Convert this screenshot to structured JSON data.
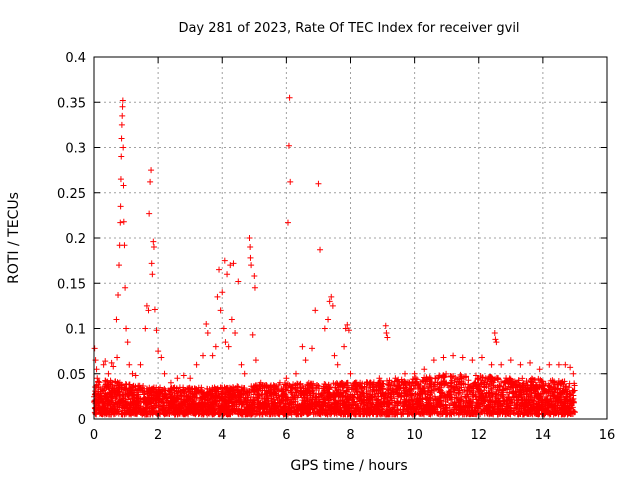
{
  "chart_data": {
    "type": "scatter",
    "title": "Day 281 of 2023, Rate Of TEC Index for receiver gvil",
    "xlabel": "GPS time / hours",
    "ylabel": "ROTI / TECUs",
    "xlim": [
      0,
      16
    ],
    "ylim": [
      0,
      0.4
    ],
    "x_ticks": [
      0,
      2,
      4,
      6,
      8,
      10,
      12,
      14,
      16
    ],
    "x_tick_labels": [
      "0",
      "2",
      "4",
      "6",
      "8",
      "10",
      "12",
      "14",
      "16"
    ],
    "y_ticks": [
      0,
      0.05,
      0.1,
      0.15,
      0.2,
      0.25,
      0.3,
      0.35,
      0.4
    ],
    "y_tick_labels": [
      "0",
      "0.05",
      "0.1",
      "0.15",
      "0.2",
      "0.25",
      "0.3",
      "0.35",
      "0.4"
    ],
    "grid": true,
    "marker": "+",
    "series": [
      {
        "name": "ROTI",
        "color": "#ff0000",
        "points": [
          [
            0.02,
            0.078
          ],
          [
            0.05,
            0.065
          ],
          [
            0.08,
            0.055
          ],
          [
            0.1,
            0.045
          ],
          [
            0.15,
            0.035
          ],
          [
            0.2,
            0.03
          ],
          [
            0.25,
            0.028
          ],
          [
            0.3,
            0.06
          ],
          [
            0.35,
            0.064
          ],
          [
            0.45,
            0.05
          ],
          [
            0.55,
            0.062
          ],
          [
            0.6,
            0.058
          ],
          [
            0.7,
            0.11
          ],
          [
            0.72,
            0.068
          ],
          [
            0.75,
            0.137
          ],
          [
            0.78,
            0.17
          ],
          [
            0.8,
            0.192
          ],
          [
            0.82,
            0.217
          ],
          [
            0.83,
            0.235
          ],
          [
            0.84,
            0.265
          ],
          [
            0.85,
            0.29
          ],
          [
            0.86,
            0.31
          ],
          [
            0.87,
            0.325
          ],
          [
            0.88,
            0.335
          ],
          [
            0.89,
            0.345
          ],
          [
            0.9,
            0.352
          ],
          [
            0.91,
            0.3
          ],
          [
            0.92,
            0.258
          ],
          [
            0.93,
            0.218
          ],
          [
            0.95,
            0.192
          ],
          [
            0.97,
            0.145
          ],
          [
            1.0,
            0.1
          ],
          [
            1.05,
            0.085
          ],
          [
            1.1,
            0.06
          ],
          [
            1.2,
            0.05
          ],
          [
            1.3,
            0.048
          ],
          [
            1.45,
            0.06
          ],
          [
            1.6,
            0.1
          ],
          [
            1.65,
            0.125
          ],
          [
            1.7,
            0.12
          ],
          [
            1.72,
            0.227
          ],
          [
            1.75,
            0.262
          ],
          [
            1.78,
            0.275
          ],
          [
            1.8,
            0.172
          ],
          [
            1.82,
            0.16
          ],
          [
            1.85,
            0.196
          ],
          [
            1.87,
            0.19
          ],
          [
            1.9,
            0.121
          ],
          [
            1.95,
            0.098
          ],
          [
            2.0,
            0.075
          ],
          [
            2.1,
            0.068
          ],
          [
            2.2,
            0.05
          ],
          [
            2.4,
            0.04
          ],
          [
            2.6,
            0.045
          ],
          [
            2.8,
            0.048
          ],
          [
            3.0,
            0.045
          ],
          [
            3.2,
            0.06
          ],
          [
            3.4,
            0.07
          ],
          [
            3.5,
            0.105
          ],
          [
            3.55,
            0.095
          ],
          [
            3.7,
            0.07
          ],
          [
            3.8,
            0.08
          ],
          [
            3.85,
            0.135
          ],
          [
            3.9,
            0.165
          ],
          [
            3.95,
            0.12
          ],
          [
            4.0,
            0.14
          ],
          [
            4.05,
            0.1
          ],
          [
            4.08,
            0.175
          ],
          [
            4.1,
            0.085
          ],
          [
            4.15,
            0.16
          ],
          [
            4.2,
            0.08
          ],
          [
            4.25,
            0.17
          ],
          [
            4.3,
            0.11
          ],
          [
            4.35,
            0.172
          ],
          [
            4.4,
            0.095
          ],
          [
            4.5,
            0.152
          ],
          [
            4.6,
            0.06
          ],
          [
            4.7,
            0.05
          ],
          [
            4.85,
            0.2
          ],
          [
            4.87,
            0.19
          ],
          [
            4.88,
            0.178
          ],
          [
            4.9,
            0.17
          ],
          [
            4.95,
            0.093
          ],
          [
            5.0,
            0.158
          ],
          [
            5.02,
            0.145
          ],
          [
            5.05,
            0.065
          ],
          [
            5.2,
            0.04
          ],
          [
            5.5,
            0.035
          ],
          [
            5.8,
            0.04
          ],
          [
            6.0,
            0.045
          ],
          [
            6.05,
            0.217
          ],
          [
            6.08,
            0.302
          ],
          [
            6.1,
            0.355
          ],
          [
            6.12,
            0.262
          ],
          [
            6.3,
            0.05
          ],
          [
            6.5,
            0.08
          ],
          [
            6.6,
            0.065
          ],
          [
            6.8,
            0.078
          ],
          [
            6.9,
            0.12
          ],
          [
            7.0,
            0.26
          ],
          [
            7.05,
            0.187
          ],
          [
            7.2,
            0.1
          ],
          [
            7.3,
            0.11
          ],
          [
            7.35,
            0.13
          ],
          [
            7.4,
            0.135
          ],
          [
            7.45,
            0.125
          ],
          [
            7.5,
            0.07
          ],
          [
            7.6,
            0.06
          ],
          [
            7.8,
            0.08
          ],
          [
            7.85,
            0.1
          ],
          [
            7.9,
            0.104
          ],
          [
            7.95,
            0.098
          ],
          [
            8.0,
            0.05
          ],
          [
            8.3,
            0.04
          ],
          [
            8.6,
            0.04
          ],
          [
            8.9,
            0.045
          ],
          [
            9.1,
            0.103
          ],
          [
            9.12,
            0.095
          ],
          [
            9.15,
            0.09
          ],
          [
            9.4,
            0.045
          ],
          [
            9.7,
            0.05
          ],
          [
            10.0,
            0.05
          ],
          [
            10.3,
            0.055
          ],
          [
            10.6,
            0.065
          ],
          [
            10.9,
            0.068
          ],
          [
            11.2,
            0.07
          ],
          [
            11.5,
            0.068
          ],
          [
            11.8,
            0.065
          ],
          [
            12.1,
            0.068
          ],
          [
            12.4,
            0.06
          ],
          [
            12.5,
            0.095
          ],
          [
            12.52,
            0.088
          ],
          [
            12.55,
            0.085
          ],
          [
            12.7,
            0.06
          ],
          [
            13.0,
            0.065
          ],
          [
            13.3,
            0.06
          ],
          [
            13.6,
            0.062
          ],
          [
            13.9,
            0.055
          ],
          [
            14.2,
            0.06
          ],
          [
            14.5,
            0.06
          ],
          [
            14.7,
            0.06
          ],
          [
            14.85,
            0.057
          ],
          [
            14.95,
            0.05
          ]
        ]
      }
    ],
    "dense_band": {
      "description": "dense baseline cloud of ROTI values",
      "x_range": [
        0,
        15
      ],
      "y_floor": 0.005,
      "y_ceiling_by_x": [
        [
          0,
          0.045
        ],
        [
          2,
          0.035
        ],
        [
          4,
          0.035
        ],
        [
          6,
          0.04
        ],
        [
          8,
          0.04
        ],
        [
          10,
          0.045
        ],
        [
          11,
          0.05
        ],
        [
          12,
          0.048
        ],
        [
          13,
          0.045
        ],
        [
          14,
          0.045
        ],
        [
          15,
          0.04
        ]
      ]
    }
  }
}
